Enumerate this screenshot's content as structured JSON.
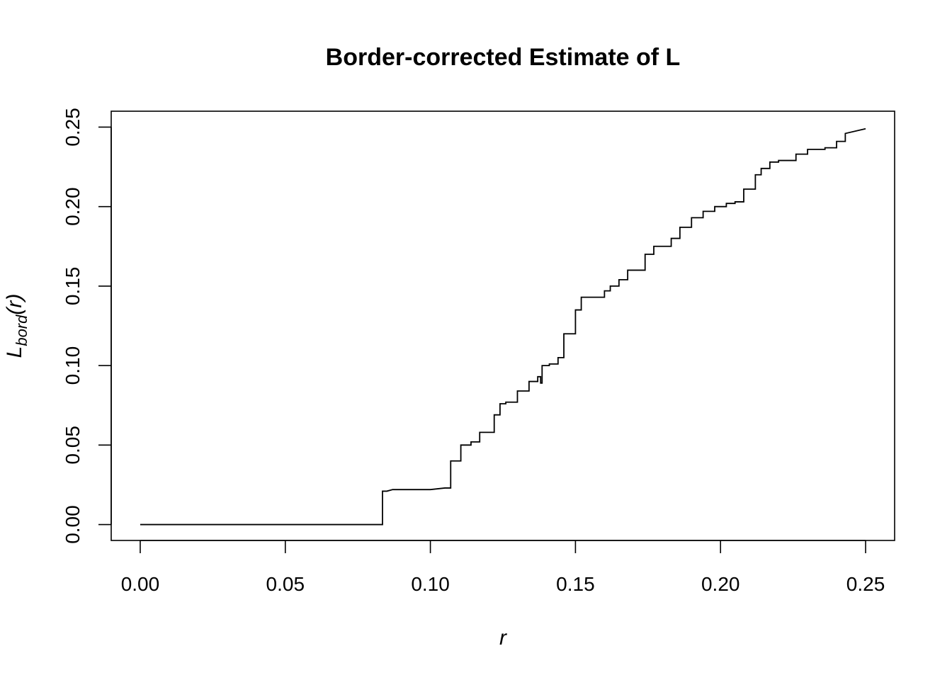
{
  "chart_data": {
    "type": "line",
    "line_style": "step",
    "title": "Border-corrected Estimate of L",
    "xlabel": "r",
    "ylabel": {
      "main": "L",
      "subscript": "bord",
      "suffix": "(r)"
    },
    "xlim": [
      -0.01,
      0.26
    ],
    "ylim": [
      -0.01,
      0.26
    ],
    "xticks": [
      0.0,
      0.05,
      0.1,
      0.15,
      0.2,
      0.25
    ],
    "xtick_labels": [
      "0.00",
      "0.05",
      "0.10",
      "0.15",
      "0.20",
      "0.25"
    ],
    "yticks": [
      0.0,
      0.05,
      0.1,
      0.15,
      0.2,
      0.25
    ],
    "ytick_labels": [
      "0.00",
      "0.05",
      "0.10",
      "0.15",
      "0.20",
      "0.25"
    ],
    "grid": false,
    "line_color": "#000000",
    "series": [
      {
        "x": [
          0.0,
          0.0835,
          0.0835,
          0.085,
          0.087,
          0.1,
          0.105,
          0.107,
          0.107,
          0.1105,
          0.1105,
          0.114,
          0.114,
          0.117,
          0.117,
          0.122,
          0.122,
          0.124,
          0.124,
          0.126,
          0.126,
          0.13,
          0.13,
          0.134,
          0.134,
          0.137,
          0.137,
          0.138,
          0.138,
          0.1385,
          0.1385,
          0.141,
          0.141,
          0.144,
          0.144,
          0.146,
          0.146,
          0.15,
          0.15,
          0.152,
          0.152,
          0.16,
          0.16,
          0.162,
          0.162,
          0.165,
          0.165,
          0.168,
          0.168,
          0.174,
          0.174,
          0.177,
          0.177,
          0.183,
          0.183,
          0.186,
          0.186,
          0.19,
          0.19,
          0.194,
          0.194,
          0.198,
          0.198,
          0.202,
          0.202,
          0.205,
          0.205,
          0.208,
          0.208,
          0.212,
          0.212,
          0.214,
          0.214,
          0.217,
          0.217,
          0.22,
          0.22,
          0.226,
          0.226,
          0.23,
          0.23,
          0.236,
          0.236,
          0.24,
          0.24,
          0.243,
          0.243,
          0.25
        ],
        "y": [
          0.0,
          0.0,
          0.021,
          0.021,
          0.022,
          0.022,
          0.023,
          0.023,
          0.04,
          0.04,
          0.05,
          0.05,
          0.052,
          0.052,
          0.058,
          0.058,
          0.069,
          0.069,
          0.076,
          0.076,
          0.077,
          0.077,
          0.084,
          0.084,
          0.09,
          0.09,
          0.093,
          0.093,
          0.089,
          0.089,
          0.1,
          0.1,
          0.101,
          0.101,
          0.105,
          0.105,
          0.12,
          0.12,
          0.135,
          0.135,
          0.143,
          0.143,
          0.147,
          0.147,
          0.15,
          0.15,
          0.154,
          0.154,
          0.16,
          0.16,
          0.17,
          0.17,
          0.175,
          0.175,
          0.18,
          0.18,
          0.187,
          0.187,
          0.193,
          0.193,
          0.197,
          0.197,
          0.2,
          0.2,
          0.202,
          0.202,
          0.203,
          0.203,
          0.211,
          0.211,
          0.22,
          0.22,
          0.224,
          0.224,
          0.228,
          0.228,
          0.229,
          0.229,
          0.233,
          0.233,
          0.236,
          0.236,
          0.237,
          0.237,
          0.241,
          0.241,
          0.246,
          0.249
        ]
      }
    ]
  }
}
